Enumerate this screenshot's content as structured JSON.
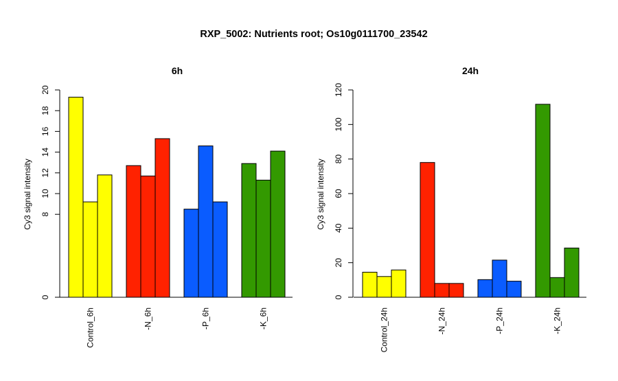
{
  "title": "RXP_5002: Nutrients root; Os10g0111700_23542",
  "colors": {
    "Control": "#ffff00",
    "N": "#ff2200",
    "P": "#0a5cff",
    "K": "#339900"
  },
  "chart_data": [
    {
      "type": "bar",
      "title": "6h",
      "ylabel": "Cy3 signal intensity",
      "ylim": [
        0,
        20
      ],
      "yticks": [
        0,
        8,
        10,
        12,
        14,
        16,
        18,
        20
      ],
      "ytick_labels": [
        "0",
        "8",
        "10",
        "12",
        "14",
        "16",
        "18",
        "20"
      ],
      "groups": [
        {
          "label": "Control_6h",
          "color_key": "Control",
          "values": [
            19.3,
            9.2,
            11.8
          ]
        },
        {
          "label": "-N_6h",
          "color_key": "N",
          "values": [
            12.7,
            11.7,
            15.3
          ]
        },
        {
          "label": "-P_6h",
          "color_key": "P",
          "values": [
            8.5,
            14.6,
            9.2
          ]
        },
        {
          "label": "-K_6h",
          "color_key": "K",
          "values": [
            12.9,
            11.3,
            14.1
          ]
        }
      ]
    },
    {
      "type": "bar",
      "title": "24h",
      "ylabel": "Cy3 signal intensity",
      "ylim": [
        0,
        120
      ],
      "yticks": [
        0,
        20,
        40,
        60,
        80,
        100,
        120
      ],
      "ytick_labels": [
        "0",
        "20",
        "40",
        "60",
        "80",
        "100",
        "120"
      ],
      "groups": [
        {
          "label": "Control_24h",
          "color_key": "Control",
          "values": [
            14.5,
            12.0,
            15.8
          ]
        },
        {
          "label": "-N_24h",
          "color_key": "N",
          "values": [
            78.0,
            8.0,
            8.0
          ]
        },
        {
          "label": "-P_24h",
          "color_key": "P",
          "values": [
            10.2,
            21.5,
            9.3
          ]
        },
        {
          "label": "-K_24h",
          "color_key": "K",
          "values": [
            111.7,
            11.4,
            28.5
          ]
        }
      ]
    }
  ]
}
